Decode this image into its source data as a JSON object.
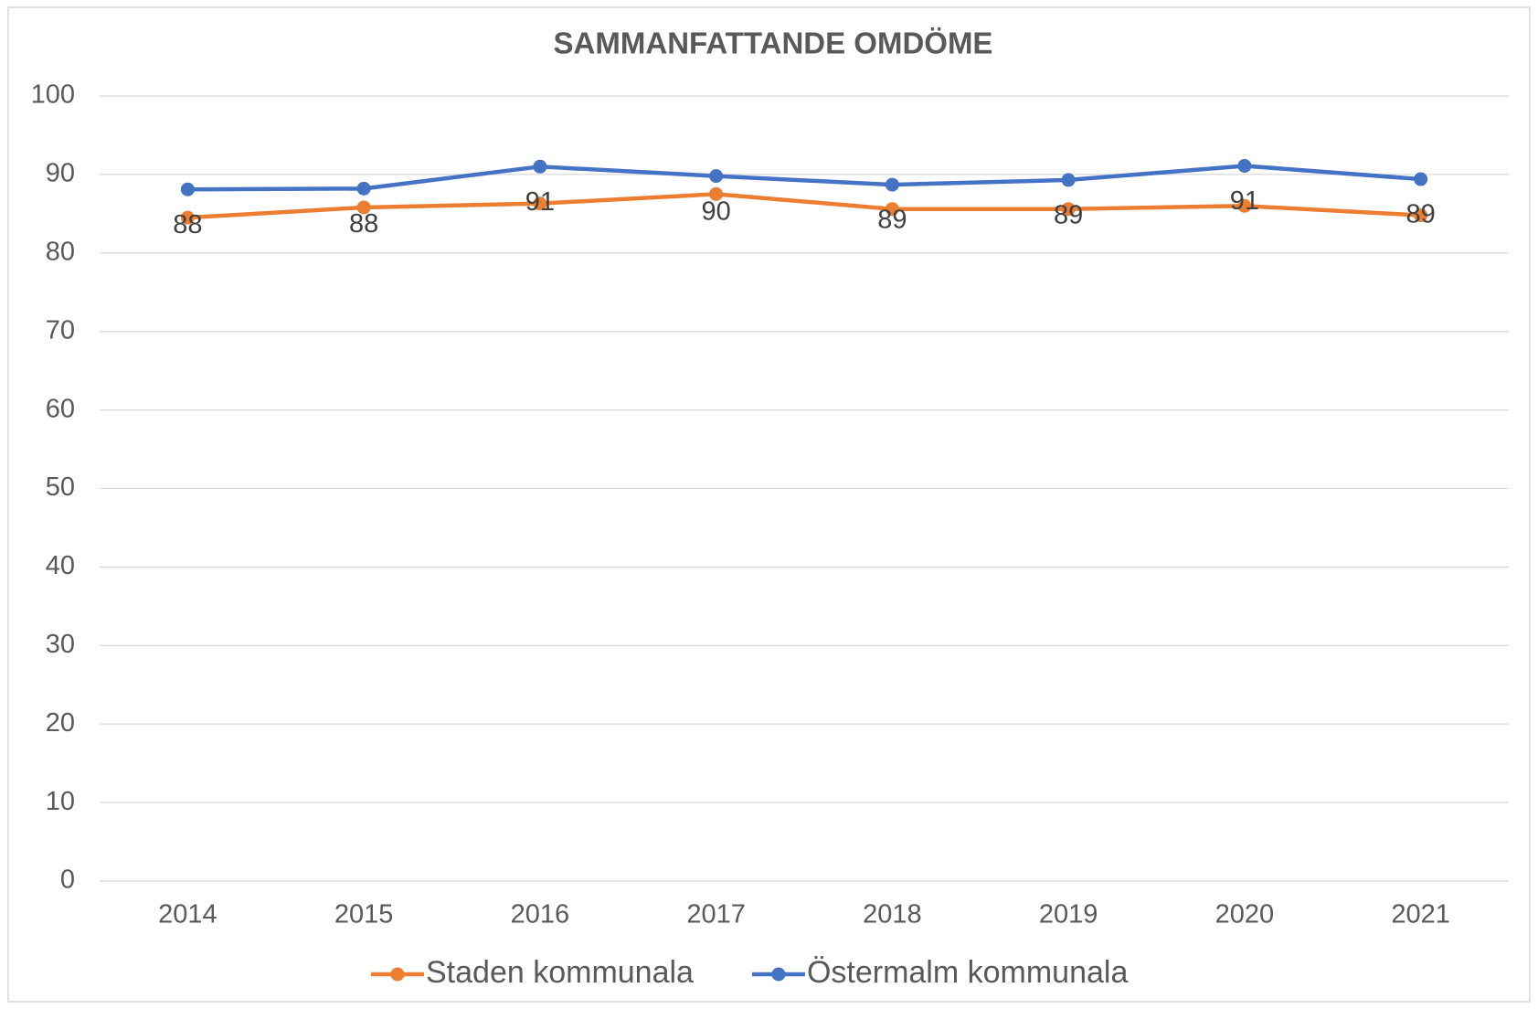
{
  "chart_data": {
    "type": "line",
    "title": "SAMMANFATTANDE OMDÖME",
    "categories": [
      "2014",
      "2015",
      "2016",
      "2017",
      "2018",
      "2019",
      "2020",
      "2021"
    ],
    "series": [
      {
        "name": "Staden kommunala",
        "color": "#ed7d31",
        "values": [
          84.5,
          85.8,
          86.3,
          87.5,
          85.6,
          85.6,
          86.0,
          84.8
        ]
      },
      {
        "name": "Östermalm kommunala",
        "color": "#4472c4",
        "values": [
          88.1,
          88.2,
          91.0,
          89.8,
          88.7,
          89.3,
          91.1,
          89.4
        ],
        "value_labels": [
          "88",
          "88",
          "91",
          "90",
          "89",
          "89",
          "91",
          "89"
        ]
      }
    ],
    "ylim": [
      0,
      100
    ],
    "yticks": [
      0,
      10,
      20,
      30,
      40,
      50,
      60,
      70,
      80,
      90,
      100
    ],
    "grid": true,
    "legend": "bottom"
  }
}
